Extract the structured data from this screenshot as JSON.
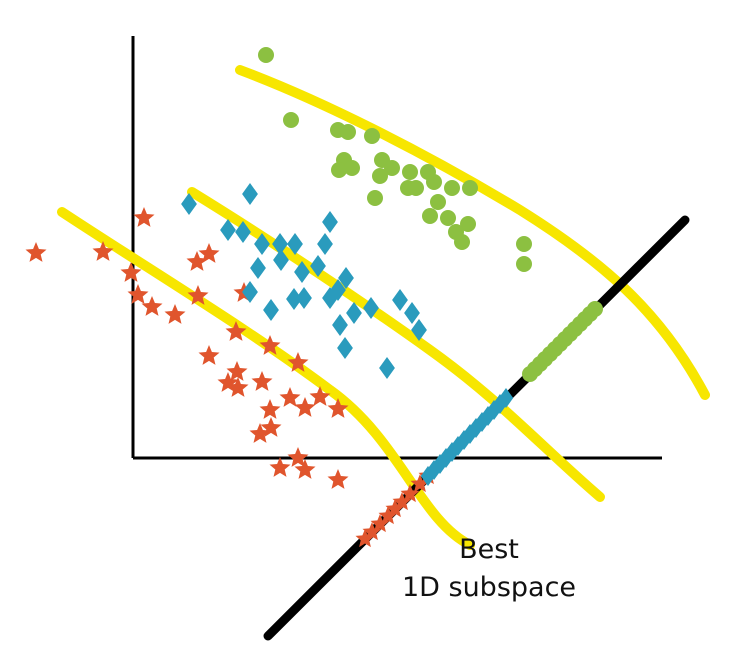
{
  "caption": {
    "line1": "Best",
    "line2": "1D subspace"
  },
  "colors": {
    "star": "#e0552d",
    "diamond": "#2a9bbd",
    "circle": "#8cc041",
    "band": "#f7e600",
    "line": "#000000",
    "axis": "#000000"
  },
  "icons": {
    "star": "star-icon",
    "diamond": "diamond-icon",
    "circle": "circle-icon"
  }
}
